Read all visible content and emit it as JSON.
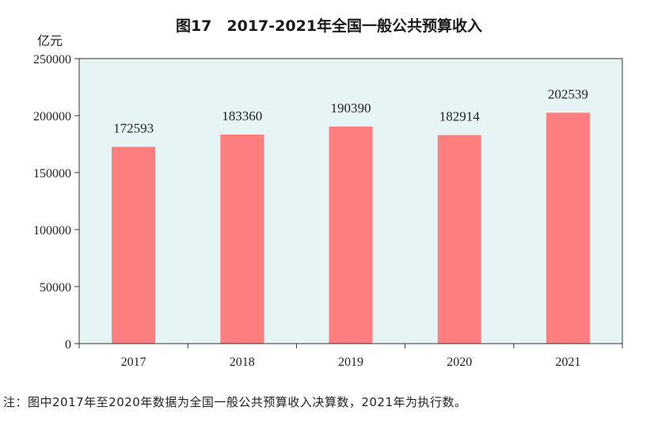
{
  "chart_data": {
    "type": "bar",
    "title": "图17　2017-2021年全国一般公共预算收入",
    "ylabel": "亿元",
    "xlabel": "",
    "categories": [
      "2017",
      "2018",
      "2019",
      "2020",
      "2021"
    ],
    "values": [
      172593,
      183360,
      190390,
      182914,
      202539
    ],
    "data_labels": [
      "172593",
      "183360",
      "190390",
      "182914",
      "202539"
    ],
    "ylim": [
      0,
      250000
    ],
    "yticks": [
      0,
      50000,
      100000,
      150000,
      200000,
      250000
    ],
    "ytick_labels": [
      "0",
      "50000",
      "100000",
      "150000",
      "200000",
      "250000"
    ],
    "grid": false,
    "colors": {
      "bar": "#fc7e7e",
      "plot_background": "#e6f4f6",
      "axis": "#333333"
    }
  },
  "footnote": "注：图中2017年至2020年数据为全国一般公共预算收入决算数，2021年为执行数。"
}
